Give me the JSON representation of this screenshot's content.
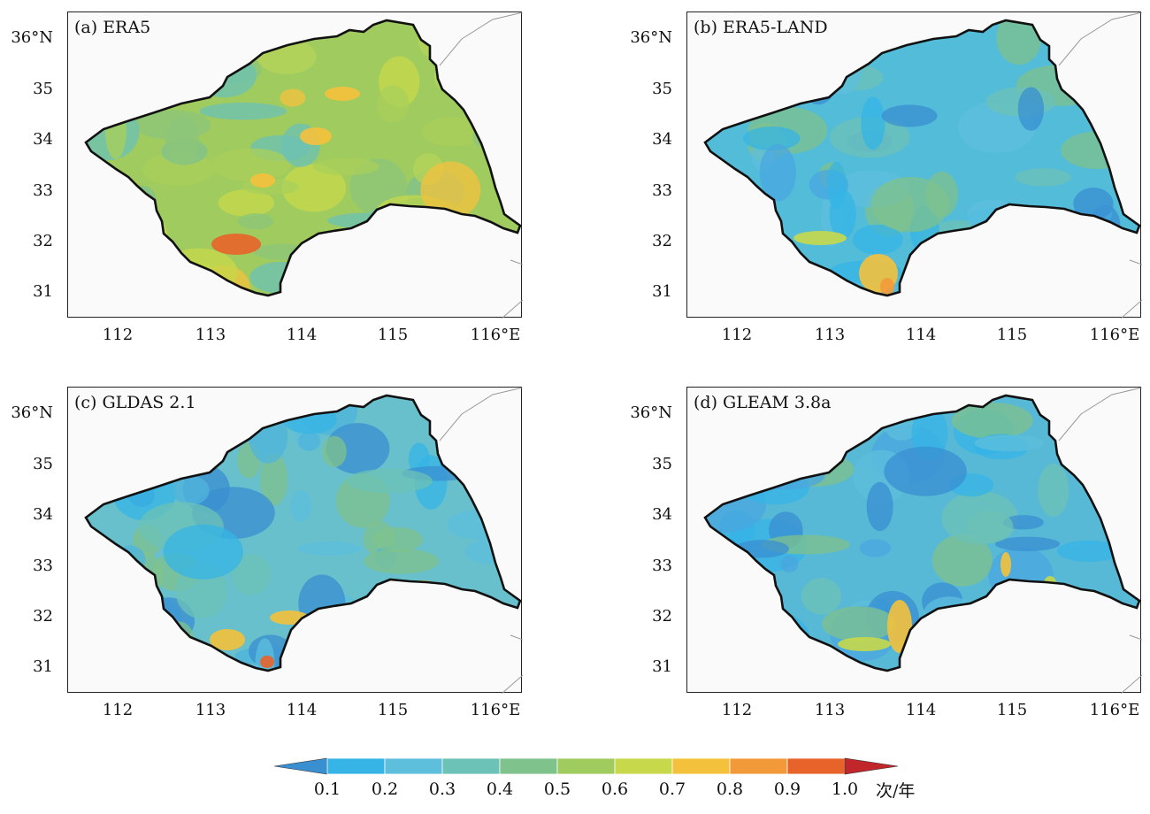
{
  "panels": [
    {
      "id": "a",
      "label": "(a) ERA5",
      "base_color": "#9fcb5f"
    },
    {
      "id": "b",
      "label": "(b) ERA5-LAND",
      "base_color": "#52bcd9"
    },
    {
      "id": "c",
      "label": "(c) GLDAS 2.1",
      "base_color": "#67c0cc"
    },
    {
      "id": "d",
      "label": "(d) GLEAM 3.8a",
      "base_color": "#58b9d6"
    }
  ],
  "axes": {
    "y_ticks": [
      "36°N",
      "35",
      "34",
      "33",
      "32",
      "31"
    ],
    "x_ticks": [
      "112",
      "113",
      "114",
      "115",
      "116°E"
    ]
  },
  "colorbar": {
    "ticks": [
      "0.1",
      "0.2",
      "0.3",
      "0.4",
      "0.5",
      "0.6",
      "0.7",
      "0.8",
      "0.9",
      "1.0"
    ],
    "unit": "次/年",
    "colors": [
      "#3a8fd1",
      "#35b4e5",
      "#5ebfdc",
      "#6cc2b6",
      "#7fc28c",
      "#9fcb5f",
      "#c7d84a",
      "#f4c13c",
      "#f29a3a",
      "#e8632a",
      "#c0262a"
    ]
  }
}
